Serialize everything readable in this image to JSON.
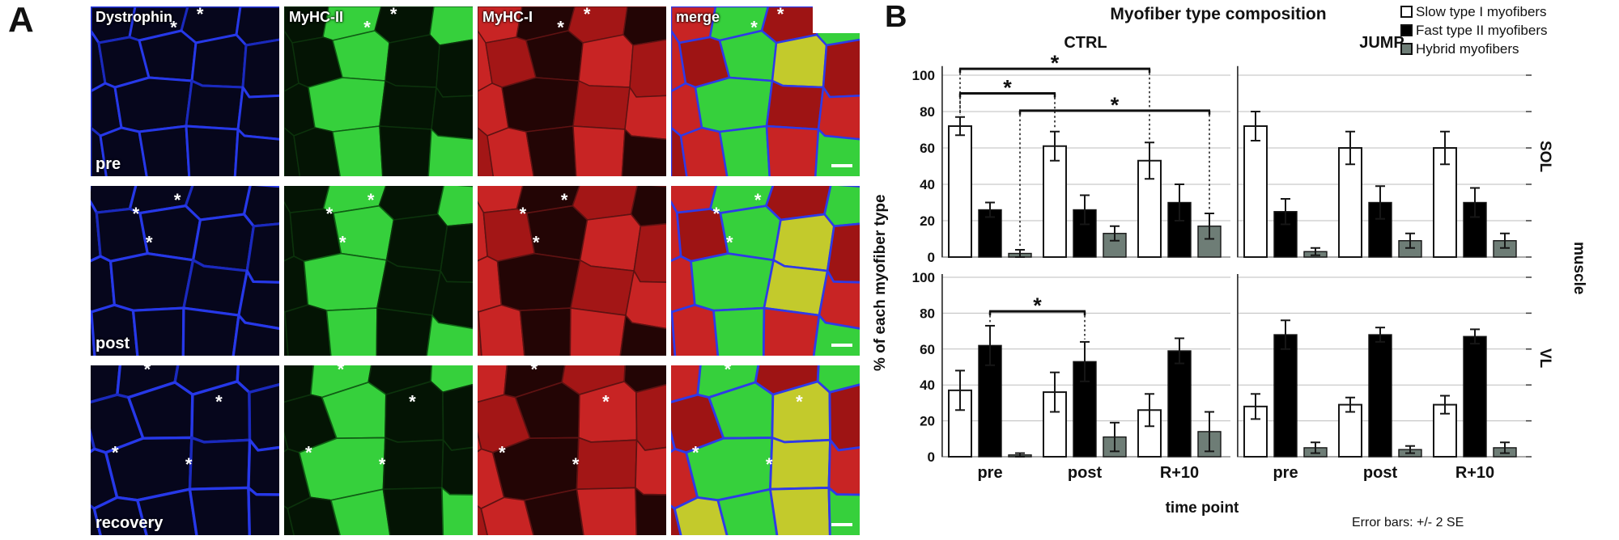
{
  "figure": {
    "panelA": {
      "label": "A",
      "col_headers": [
        "Dystrophin",
        "MyHC-II",
        "MyHC-I",
        "merge"
      ],
      "row_labels": [
        "pre",
        "post",
        "recovery"
      ],
      "asterisk": "*",
      "channel_colors": {
        "dystrophin": "#2638e8",
        "myhc_ii": "#36d03c",
        "myhc_i": "#c82424"
      }
    },
    "panelB": {
      "label": "B"
    }
  },
  "chart_data": {
    "type": "bar",
    "title": "Myofiber type composition",
    "xlabel": "time point",
    "ylabel": "% of each myofiber type",
    "note": "Error bars: +/- 2 SE",
    "sig_label": "*",
    "categories": [
      "pre",
      "post",
      "R+10"
    ],
    "col_headers": [
      "CTRL",
      "JUMP"
    ],
    "row_headers": [
      "SOL",
      "VL"
    ],
    "outer_row_header": "muscle",
    "legend": [
      "Slow type I myofibers",
      "Fast type II myofibers",
      "Hybrid myofibers"
    ],
    "series_colors": [
      "#ffffff",
      "#000000",
      "#6e7d76"
    ],
    "ylim": [
      0,
      100
    ],
    "yticks": [
      0,
      20,
      40,
      60,
      80,
      100
    ],
    "grid": true,
    "panels": [
      {
        "id": "ctrl_sol",
        "group": "CTRL",
        "muscle": "SOL",
        "series": [
          {
            "name": "Slow type I myofibers",
            "values": [
              72,
              61,
              53
            ],
            "err": [
              5,
              8,
              10
            ]
          },
          {
            "name": "Fast type II myofibers",
            "values": [
              26,
              26,
              30
            ],
            "err": [
              4,
              8,
              10
            ]
          },
          {
            "name": "Hybrid myofibers",
            "values": [
              2,
              13,
              17
            ],
            "err": [
              2,
              4,
              7
            ]
          }
        ],
        "significance": [
          {
            "level": 103.5,
            "a": [
              0,
              0
            ],
            "b": [
              2,
              0
            ],
            "label": "*"
          },
          {
            "level": 90,
            "a": [
              0,
              0
            ],
            "b": [
              1,
              0
            ],
            "label": "*"
          },
          {
            "level": 80.5,
            "a": [
              0,
              2
            ],
            "b": [
              2,
              2
            ],
            "label": "*"
          }
        ]
      },
      {
        "id": "jump_sol",
        "group": "JUMP",
        "muscle": "SOL",
        "series": [
          {
            "name": "Slow type I myofibers",
            "values": [
              72,
              60,
              60
            ],
            "err": [
              8,
              9,
              9
            ]
          },
          {
            "name": "Fast type II myofibers",
            "values": [
              25,
              30,
              30
            ],
            "err": [
              7,
              9,
              8
            ]
          },
          {
            "name": "Hybrid myofibers",
            "values": [
              3,
              9,
              9
            ],
            "err": [
              2,
              4,
              4
            ]
          }
        ],
        "significance": []
      },
      {
        "id": "ctrl_vl",
        "group": "CTRL",
        "muscle": "VL",
        "series": [
          {
            "name": "Slow type I myofibers",
            "values": [
              37,
              36,
              26
            ],
            "err": [
              11,
              11,
              9
            ]
          },
          {
            "name": "Fast type II myofibers",
            "values": [
              62,
              53,
              59
            ],
            "err": [
              11,
              11,
              7
            ]
          },
          {
            "name": "Hybrid myofibers",
            "values": [
              1,
              11,
              14
            ],
            "err": [
              1,
              8,
              11
            ]
          }
        ],
        "significance": [
          {
            "level": 81,
            "a": [
              0,
              1
            ],
            "b": [
              1,
              1
            ],
            "label": "*"
          }
        ]
      },
      {
        "id": "jump_vl",
        "group": "JUMP",
        "muscle": "VL",
        "series": [
          {
            "name": "Slow type I myofibers",
            "values": [
              28,
              29,
              29
            ],
            "err": [
              7,
              4,
              5
            ]
          },
          {
            "name": "Fast type II myofibers",
            "values": [
              68,
              68,
              67
            ],
            "err": [
              8,
              4,
              4
            ]
          },
          {
            "name": "Hybrid myofibers",
            "values": [
              5,
              4,
              5
            ],
            "err": [
              3,
              2,
              3
            ]
          }
        ],
        "significance": []
      }
    ]
  }
}
